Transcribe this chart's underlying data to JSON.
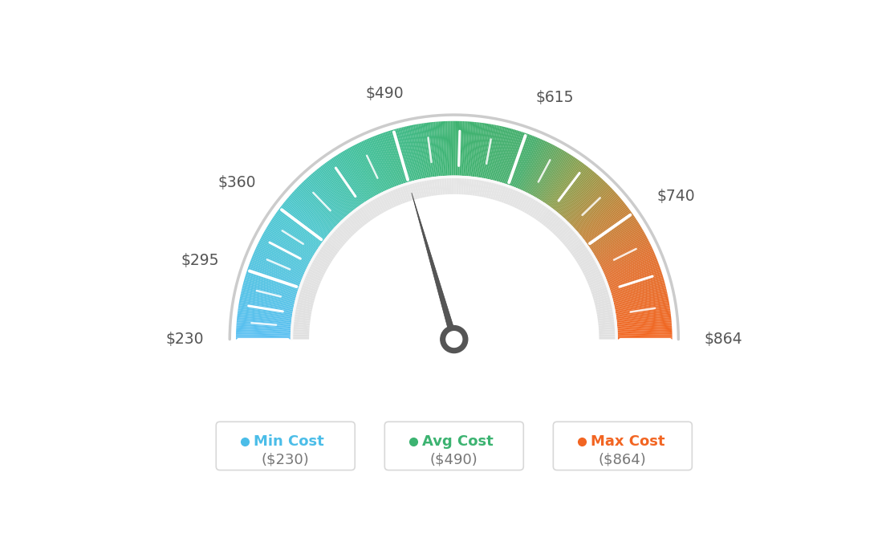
{
  "min_val": 230,
  "max_val": 864,
  "avg_val": 490,
  "label_values": [
    230,
    295,
    360,
    490,
    615,
    740,
    864
  ],
  "min_cost_label": "Min Cost",
  "avg_cost_label": "Avg Cost",
  "max_cost_label": "Max Cost",
  "min_cost_val": "($230)",
  "avg_cost_val": "($490)",
  "max_cost_val": "($864)",
  "min_color": "#4BBDE8",
  "avg_color": "#3CB371",
  "max_color": "#F26522",
  "needle_color": "#555555",
  "background_color": "#ffffff",
  "color_stops": [
    [
      0.0,
      [
        0.35,
        0.75,
        0.95
      ]
    ],
    [
      0.2,
      [
        0.3,
        0.78,
        0.82
      ]
    ],
    [
      0.35,
      [
        0.25,
        0.75,
        0.6
      ]
    ],
    [
      0.5,
      [
        0.24,
        0.7,
        0.44
      ]
    ],
    [
      0.62,
      [
        0.27,
        0.68,
        0.42
      ]
    ],
    [
      0.7,
      [
        0.55,
        0.62,
        0.3
      ]
    ],
    [
      0.78,
      [
        0.75,
        0.52,
        0.22
      ]
    ],
    [
      0.87,
      [
        0.88,
        0.44,
        0.18
      ]
    ],
    [
      1.0,
      [
        0.95,
        0.4,
        0.13
      ]
    ]
  ]
}
